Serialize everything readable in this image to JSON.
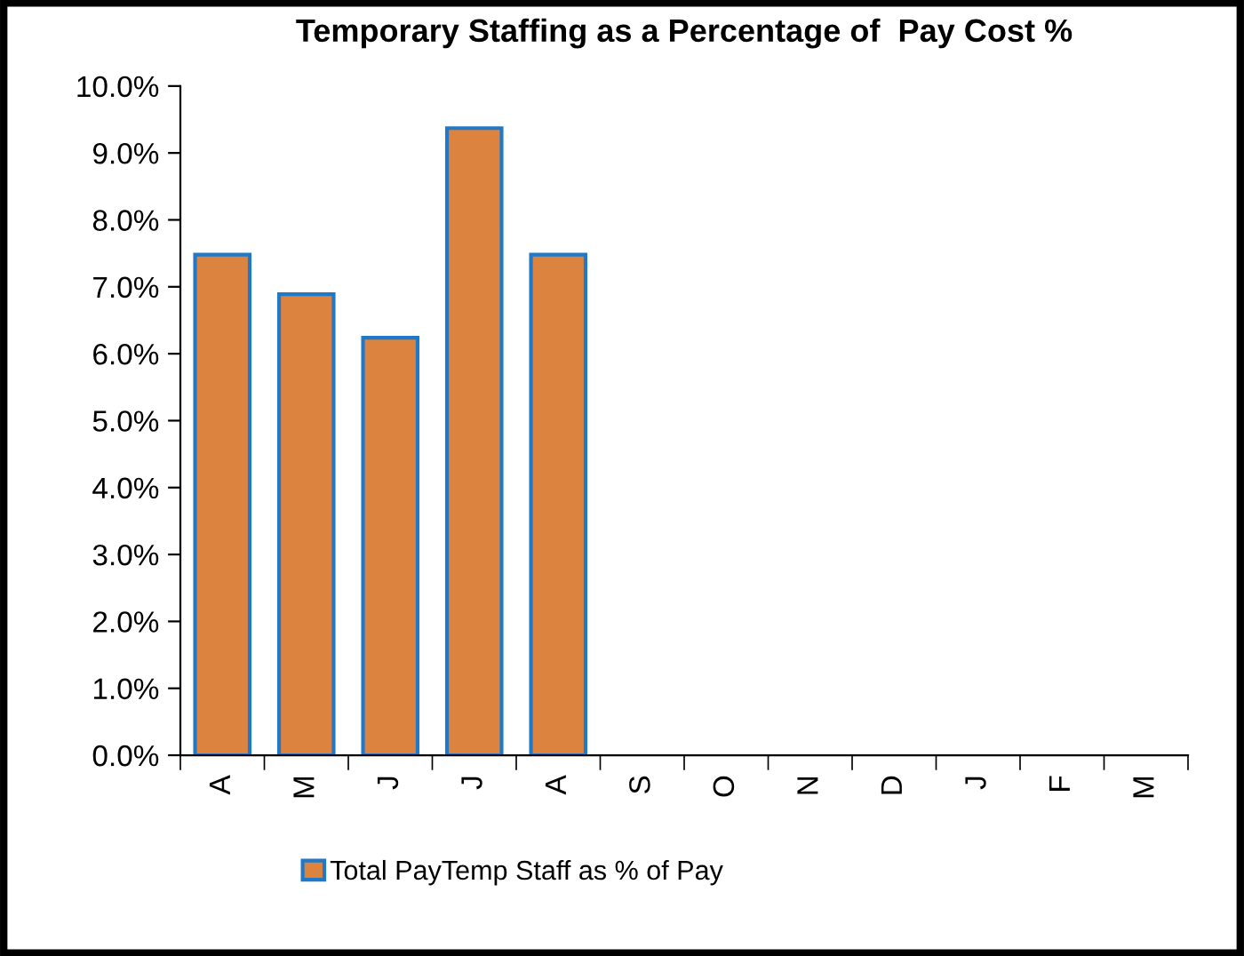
{
  "chart_data": {
    "type": "bar",
    "title": "Temporary Staffing as a Percentage of  Pay Cost %",
    "categories": [
      "A",
      "M",
      "J",
      "J",
      "A",
      "S",
      "O",
      "N",
      "D",
      "J",
      "F",
      "M"
    ],
    "series": [
      {
        "name": "Total PayTemp Staff as % of Pay",
        "color": "#dc843f",
        "values": [
          7.48,
          6.89,
          6.24,
          9.37,
          7.48,
          null,
          null,
          null,
          null,
          null,
          null,
          null
        ]
      }
    ],
    "ylim": [
      0,
      10
    ],
    "yticks": [
      {
        "value": 0,
        "label": "0.0%"
      },
      {
        "value": 1,
        "label": "1.0%"
      },
      {
        "value": 2,
        "label": "2.0%"
      },
      {
        "value": 3,
        "label": "3.0%"
      },
      {
        "value": 4,
        "label": "4.0%"
      },
      {
        "value": 5,
        "label": "5.0%"
      },
      {
        "value": 6,
        "label": "6.0%"
      },
      {
        "value": 7,
        "label": "7.0%"
      },
      {
        "value": 8,
        "label": "8.0%"
      },
      {
        "value": 9,
        "label": "9.0%"
      },
      {
        "value": 10,
        "label": "10.0%"
      }
    ],
    "grid": false,
    "legend": "bottom"
  }
}
